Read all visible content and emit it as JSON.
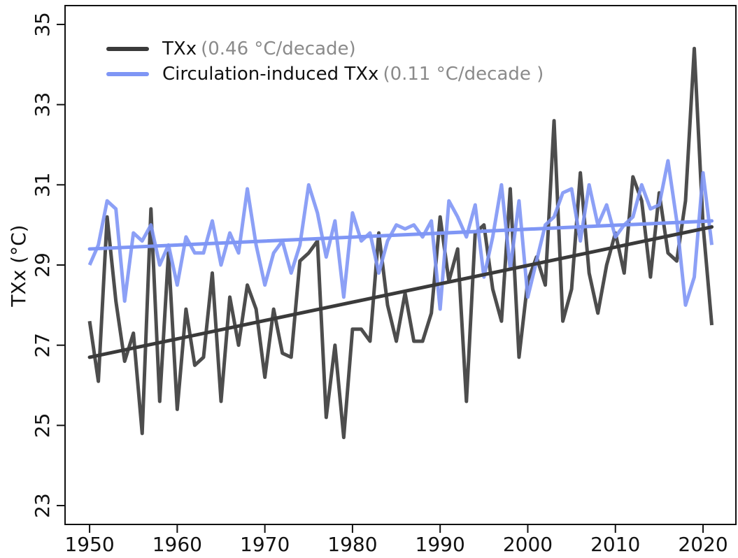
{
  "chart_data": {
    "type": "line",
    "y_label": "TXx (°C)",
    "x": [
      1950,
      1951,
      1952,
      1953,
      1954,
      1955,
      1956,
      1957,
      1958,
      1959,
      1960,
      1961,
      1962,
      1963,
      1964,
      1965,
      1966,
      1967,
      1968,
      1969,
      1970,
      1971,
      1972,
      1973,
      1974,
      1975,
      1976,
      1977,
      1978,
      1979,
      1980,
      1981,
      1982,
      1983,
      1984,
      1985,
      1986,
      1987,
      1988,
      1989,
      1990,
      1991,
      1992,
      1993,
      1994,
      1995,
      1996,
      1997,
      1998,
      1999,
      2000,
      2001,
      2002,
      2003,
      2004,
      2005,
      2006,
      2007,
      2008,
      2009,
      2010,
      2011,
      2012,
      2013,
      2014,
      2015,
      2016,
      2017,
      2018,
      2019,
      2020,
      2021
    ],
    "series": [
      {
        "name": "TXx",
        "rate_label": "(0.46 °C/decade)",
        "color": "#3a3a3a",
        "values": [
          27.6,
          26.1,
          30.2,
          28.1,
          26.6,
          27.3,
          24.8,
          30.4,
          25.6,
          29.3,
          25.4,
          27.9,
          26.5,
          26.7,
          28.8,
          25.6,
          28.2,
          27.0,
          28.5,
          27.9,
          26.2,
          27.9,
          26.8,
          26.7,
          29.1,
          29.3,
          29.6,
          25.2,
          27.0,
          24.7,
          27.4,
          27.4,
          27.1,
          29.8,
          28.0,
          27.1,
          28.3,
          27.1,
          27.1,
          27.8,
          30.2,
          28.6,
          29.4,
          25.6,
          29.8,
          30.0,
          28.4,
          27.6,
          30.9,
          26.7,
          28.6,
          29.2,
          28.5,
          32.6,
          27.6,
          28.4,
          31.3,
          28.8,
          27.8,
          29.0,
          29.8,
          28.8,
          31.2,
          30.6,
          28.7,
          30.8,
          29.3,
          29.1,
          30.6,
          34.4,
          30.0,
          27.5
        ],
        "trend": [
          26.7,
          29.95
        ]
      },
      {
        "name": "Circulation-induced TXx",
        "rate_label": "(0.11 °C/decade )",
        "color": "#7f96f5",
        "values": [
          29.0,
          29.5,
          30.6,
          30.4,
          28.1,
          29.8,
          29.6,
          30.0,
          29.0,
          29.5,
          28.5,
          29.7,
          29.3,
          29.3,
          30.1,
          29.0,
          29.8,
          29.3,
          30.9,
          29.5,
          28.5,
          29.3,
          29.6,
          28.8,
          29.5,
          31.0,
          30.3,
          29.2,
          30.1,
          28.2,
          30.3,
          29.6,
          29.8,
          28.8,
          29.6,
          30.0,
          29.9,
          30.0,
          29.7,
          30.1,
          27.9,
          30.6,
          30.2,
          29.7,
          30.5,
          28.7,
          29.7,
          31.0,
          28.9,
          30.6,
          28.2,
          29.1,
          30.0,
          30.2,
          30.8,
          30.9,
          29.6,
          31.0,
          30.0,
          30.5,
          29.7,
          30.0,
          30.2,
          31.0,
          30.4,
          30.5,
          31.6,
          30.1,
          28.0,
          28.7,
          31.3,
          29.5
        ],
        "trend": [
          29.4,
          30.1
        ]
      }
    ],
    "xlim": [
      1947.2,
      2023.75
    ],
    "ylim": [
      22.53,
      35.47
    ],
    "xticks": [
      1950,
      1960,
      1970,
      1980,
      1990,
      2000,
      2010,
      2020
    ],
    "yticks": [
      23,
      25,
      27,
      29,
      31,
      33,
      35
    ]
  }
}
